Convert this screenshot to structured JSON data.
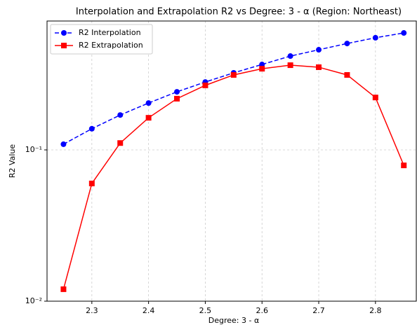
{
  "chart_data": {
    "type": "line",
    "title": "Interpolation and Extrapolation R2 vs Degree: 3 - α  (Region: Northeast)",
    "xlabel": "Degree: 3 - α",
    "ylabel": "R2 Value",
    "x": [
      2.25,
      2.3,
      2.35,
      2.4,
      2.45,
      2.5,
      2.55,
      2.6,
      2.65,
      2.7,
      2.75,
      2.8,
      2.85
    ],
    "series": [
      {
        "name": "R2 Interpolation",
        "color": "#0000ff",
        "linestyle": "dashed",
        "marker": "circle",
        "values": [
          0.109,
          0.138,
          0.17,
          0.204,
          0.242,
          0.281,
          0.323,
          0.367,
          0.417,
          0.459,
          0.505,
          0.551,
          0.593
        ]
      },
      {
        "name": "R2 Extrapolation",
        "color": "#ff0000",
        "linestyle": "solid",
        "marker": "square",
        "values": [
          0.012,
          0.06,
          0.111,
          0.163,
          0.218,
          0.267,
          0.313,
          0.344,
          0.363,
          0.352,
          0.313,
          0.222,
          0.079
        ]
      }
    ],
    "xlim": [
      2.221,
      2.872
    ],
    "xticks": [
      2.3,
      2.4,
      2.5,
      2.6,
      2.7,
      2.8
    ],
    "ylim": [
      0.01,
      0.711
    ],
    "ylog": true,
    "yticks": [
      {
        "value": 0.01,
        "label": "10⁻²"
      },
      {
        "value": 0.1,
        "label": "10⁻¹"
      }
    ],
    "grid": true,
    "legend": "upper left"
  }
}
